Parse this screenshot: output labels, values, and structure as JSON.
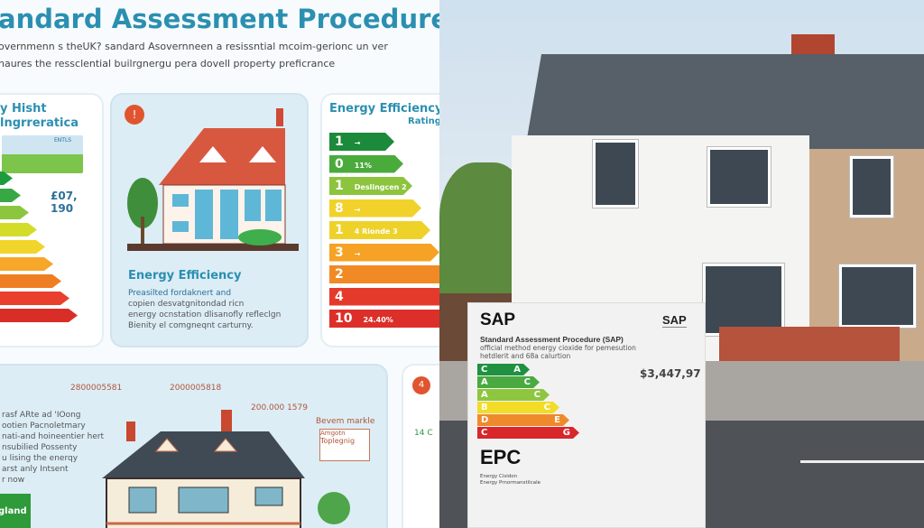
{
  "infographic": {
    "title": "andard Assessment Procedure",
    "subtitle_lines": [
      "overnmenn s theUK? sandard Asovernneen a resissntial mcoim-gerionc un ver",
      "naures the ressclential builrgnergu pera dovell property preficrance"
    ],
    "card1": {
      "title_lines": [
        "y Hisht",
        "lngrreratica"
      ],
      "sign": "ENTLS",
      "value": "£07, 190",
      "bar_colors": [
        "#1e9a3f",
        "#37a843",
        "#8cc63f",
        "#d4dc2a",
        "#f1d52a",
        "#f6a628",
        "#ef7d22",
        "#e8402c",
        "#d92e28"
      ]
    },
    "card2": {
      "badge": "!",
      "heading": "Energy Efficiency",
      "body_lines": [
        "Preasilted fordaknert and",
        "copien desvatgnitondad  ricn",
        "energy ocnstation dlisanofly refleclgn",
        "Bienity el comgneqnt carturny."
      ]
    },
    "card3": {
      "title_lines": [
        "Energy Efficiency",
        "Rating"
      ],
      "bars": [
        {
          "label": "1",
          "text": "→",
          "color": "#1b8a3a"
        },
        {
          "label": "0",
          "text": "11%",
          "color": "#4aab3c"
        },
        {
          "label": "1",
          "text": "Deslingcen 2",
          "color": "#8cc43e"
        },
        {
          "label": "8",
          "text": "→",
          "color": "#f1d22a"
        },
        {
          "label": "1",
          "text": "4 Rionde 3",
          "color": "#eed22a"
        },
        {
          "label": "3",
          "text": "→",
          "color": "#f6a224"
        },
        {
          "label": "2",
          "text": "",
          "color": "#f18a24"
        },
        {
          "label": "4",
          "text": "",
          "color": "#e43a2c"
        },
        {
          "label": "10",
          "text": "24.40%",
          "color": "#dd2f2a"
        }
      ]
    },
    "bottom_card": {
      "callouts": [
        "2800005581",
        "2000005818",
        "200.000 1579",
        "Bevem markle"
      ],
      "sign_lines": [
        "Amgotn",
        "Toplegnig"
      ],
      "body_lines": [
        "rasf ARte ad 'IOong",
        "ootien Pacnoletmary",
        "nati-and hoineentier hert",
        "nsubilied Possenty",
        "u lising the enerqy",
        "arst anly Intsent",
        "r now"
      ],
      "green_badge": "gland"
    },
    "partial_card": {
      "badge": "4",
      "text": "14 C"
    }
  },
  "epc_card": {
    "title": "SAP",
    "corner_label": "SAP",
    "heading": "Standard Assessment Procedure (SAP)",
    "desc_lines": [
      "official  method energy cioxide for pemesution",
      "hetdlerit and 68a calurtion"
    ],
    "price": "$3,447,97",
    "bars": [
      {
        "left": "C",
        "right": "A",
        "color": "#1f9140"
      },
      {
        "left": "A",
        "right": "C",
        "color": "#4aa941"
      },
      {
        "left": "A",
        "right": "C",
        "color": "#8ec63f"
      },
      {
        "left": "B",
        "right": "C",
        "color": "#f2dc27"
      },
      {
        "left": "D",
        "right": "E",
        "color": "#ef8a2c"
      },
      {
        "left": "C",
        "right": "G",
        "color": "#d9262a"
      }
    ],
    "footer_title": "EPC",
    "footer_lines": [
      "Energy Cisidon",
      "Energy Prnormanstilcale"
    ]
  }
}
